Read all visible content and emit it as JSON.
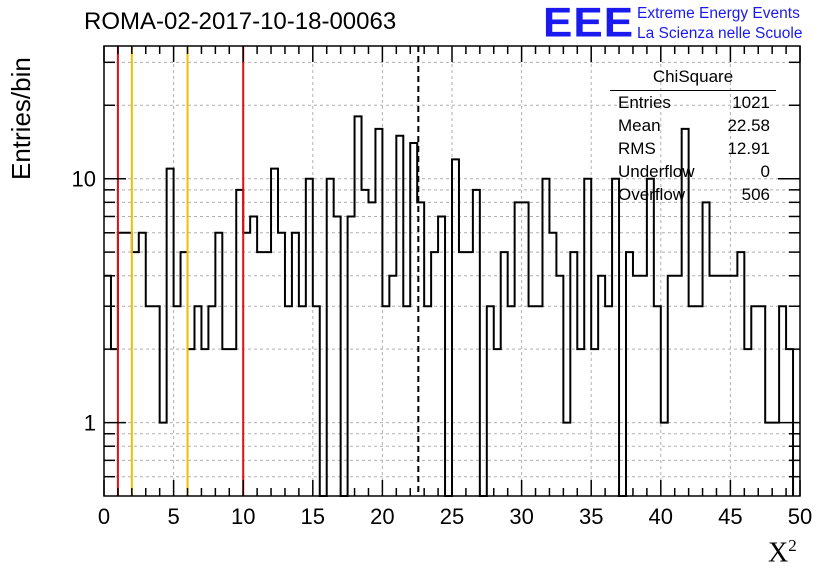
{
  "title": "ROMA-02-2017-10-18-00063",
  "logo": {
    "mark": "EEE",
    "line1": "Extreme Energy Events",
    "line2": "La Scienza nelle Scuole"
  },
  "stats": {
    "header": "ChiSquare",
    "rows": [
      {
        "label": "Entries",
        "value": "1021"
      },
      {
        "label": "Mean",
        "value": "22.58"
      },
      {
        "label": "RMS",
        "value": "12.91"
      },
      {
        "label": "Underflow",
        "value": "0"
      },
      {
        "label": "Overflow",
        "value": "506"
      }
    ]
  },
  "colors": {
    "red": "#e01010",
    "yellow": "#f0c000",
    "grid": "#b0b0b0",
    "logo": "#1a1af0"
  },
  "chart_data": {
    "type": "histogram",
    "title": "ROMA-02-2017-10-18-00063",
    "xlabel": "X",
    "xlabel_superscript": "2",
    "ylabel": "Entries/bin",
    "xlim": [
      0,
      50
    ],
    "ylim": [
      0.5,
      35
    ],
    "yscale": "log",
    "grid": true,
    "x_ticks": [
      "0",
      "5",
      "10",
      "15",
      "20",
      "25",
      "30",
      "35",
      "40",
      "45",
      "50"
    ],
    "y_ticks": [
      "1",
      "10"
    ],
    "bin_width": 0.5,
    "counts": [
      4,
      2,
      6,
      6,
      5,
      6,
      3,
      3,
      1,
      11,
      3,
      5,
      2,
      3,
      2,
      3,
      6,
      2,
      2,
      9,
      6,
      7,
      5,
      5,
      11,
      6,
      3,
      6,
      3,
      10,
      3,
      0,
      10,
      7,
      0,
      7,
      18,
      9,
      8,
      16,
      3,
      4,
      15,
      3,
      14,
      8,
      3,
      5,
      7,
      0,
      12,
      5,
      5,
      9,
      0,
      3,
      2,
      5,
      3,
      8,
      8,
      3,
      3,
      10,
      6,
      4,
      1,
      5,
      2,
      10,
      2,
      4,
      3,
      10,
      0,
      5,
      4,
      4,
      10,
      3,
      1,
      4,
      4,
      16,
      3,
      3,
      8,
      4,
      4,
      4,
      4,
      5,
      2,
      3,
      3,
      1,
      1,
      3,
      2
    ],
    "reference_lines": [
      {
        "x": 1,
        "color": "red",
        "style": "solid"
      },
      {
        "x": 2,
        "color": "yellow",
        "style": "solid"
      },
      {
        "x": 6,
        "color": "yellow",
        "style": "solid"
      },
      {
        "x": 10,
        "color": "red",
        "style": "solid"
      },
      {
        "x": 22.58,
        "color": "black",
        "style": "dashed"
      }
    ]
  }
}
